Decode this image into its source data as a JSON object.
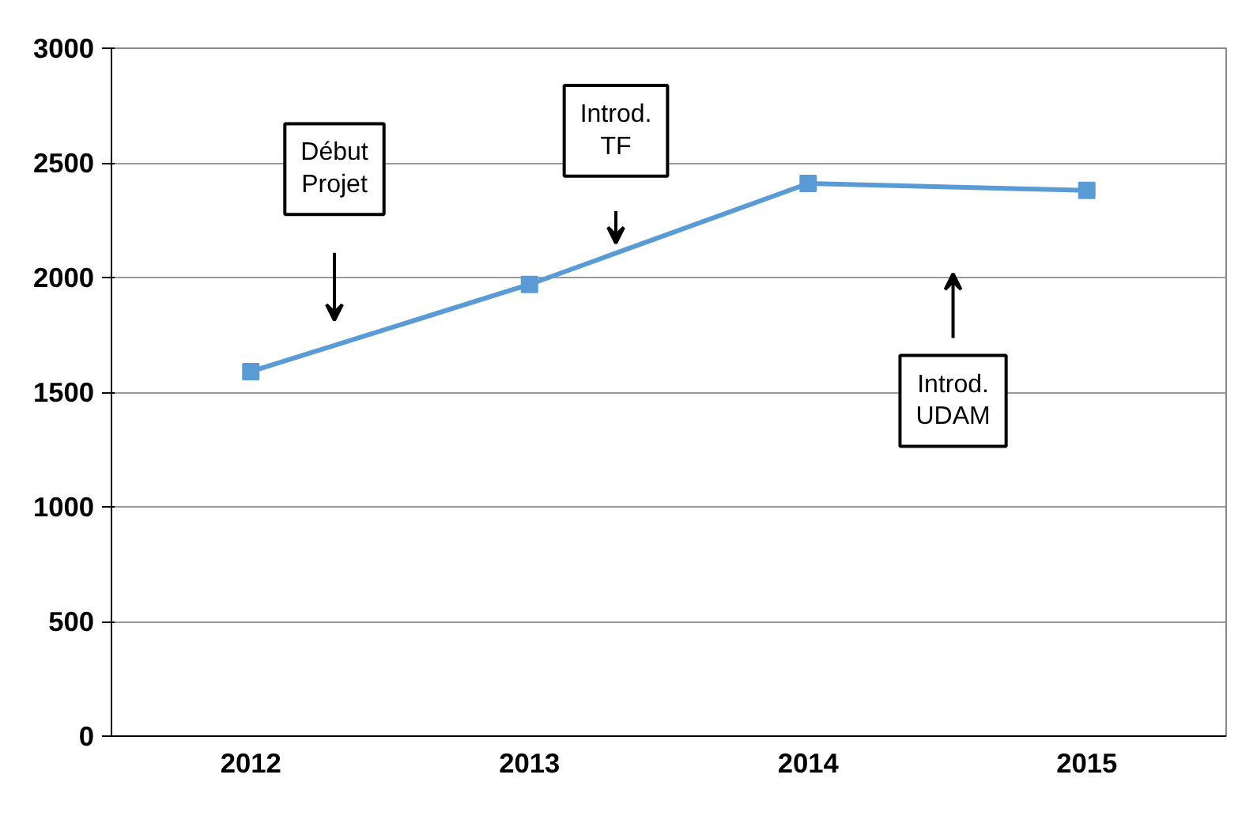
{
  "chart_data": {
    "type": "line",
    "categories": [
      "2012",
      "2013",
      "2014",
      "2015"
    ],
    "series": [
      {
        "color": "#5b9bd5",
        "values": [
          1590,
          1970,
          2410,
          2380
        ]
      }
    ],
    "ylim": [
      0,
      3000
    ],
    "yticks": [
      0,
      500,
      1000,
      1500,
      2000,
      2500,
      3000
    ],
    "grid": "y",
    "marker": "square",
    "line_style": "solid",
    "annotations": [
      "Début Projet",
      "Introd. TF",
      "Introd. UDAM"
    ]
  }
}
